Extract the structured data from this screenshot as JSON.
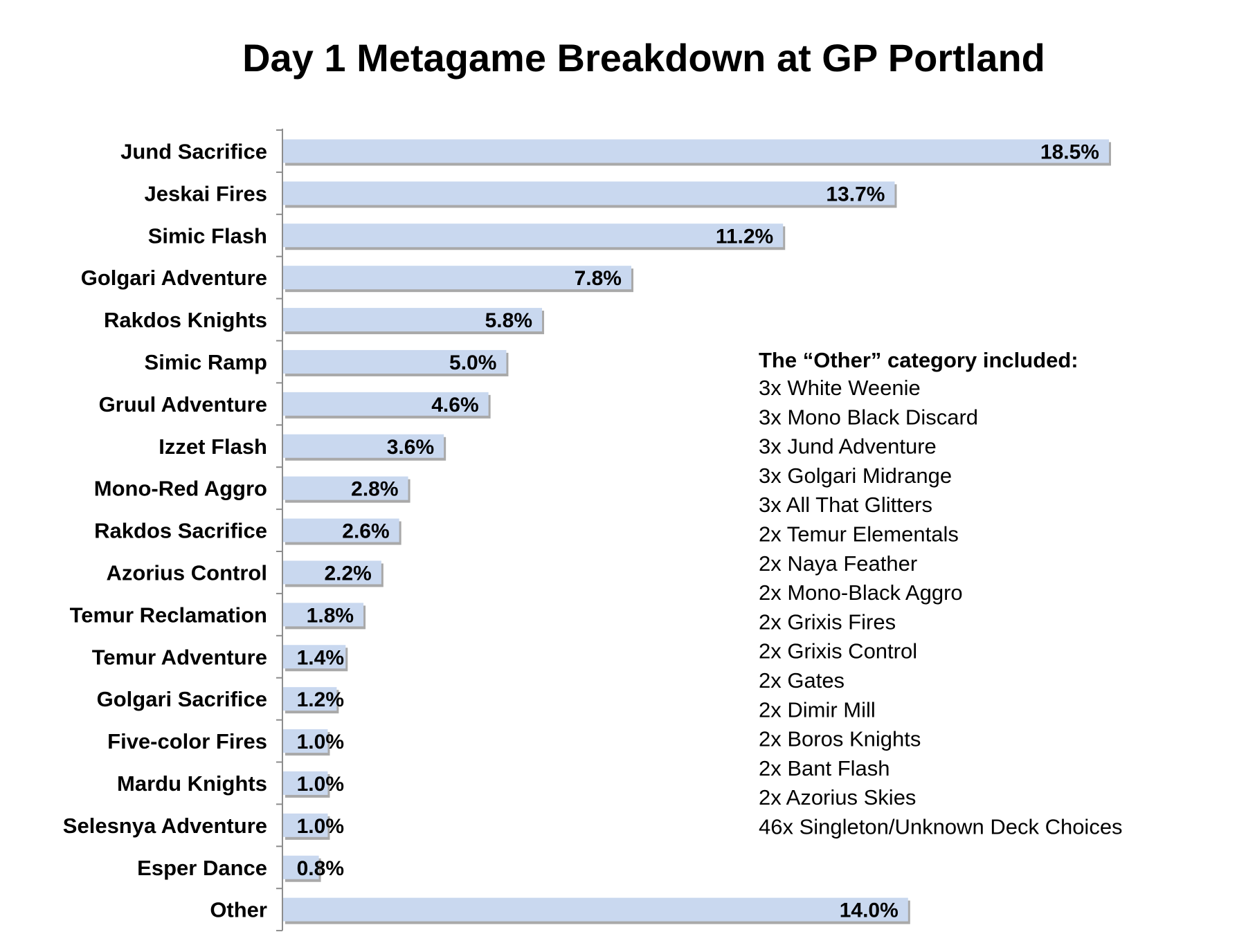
{
  "chart_data": {
    "type": "bar",
    "orientation": "horizontal",
    "title": "Day 1 Metagame Breakdown at GP Portland",
    "categories": [
      "Jund Sacrifice",
      "Jeskai Fires",
      "Simic Flash",
      "Golgari Adventure",
      "Rakdos Knights",
      "Simic Ramp",
      "Gruul Adventure",
      "Izzet Flash",
      "Mono-Red Aggro",
      "Rakdos Sacrifice",
      "Azorius Control",
      "Temur Reclamation",
      "Temur Adventure",
      "Golgari Sacrifice",
      "Five-color Fires",
      "Mardu Knights",
      "Selesnya Adventure",
      "Esper Dance",
      "Other"
    ],
    "values": [
      18.5,
      13.7,
      11.2,
      7.8,
      5.8,
      5.0,
      4.6,
      3.6,
      2.8,
      2.6,
      2.2,
      1.8,
      1.4,
      1.2,
      1.0,
      1.0,
      1.0,
      0.8,
      14.0
    ],
    "value_labels": [
      "18.5%",
      "13.7%",
      "11.2%",
      "7.8%",
      "5.8%",
      "5.0%",
      "4.6%",
      "3.6%",
      "2.8%",
      "2.6%",
      "2.2%",
      "1.8%",
      "1.4%",
      "1.2%",
      "1.0%",
      "1.0%",
      "1.0%",
      "0.8%",
      "14.0%"
    ],
    "xlabel": "",
    "ylabel": "",
    "xlim": [
      0,
      18.5
    ],
    "grid": false,
    "legend": "none",
    "bar_color": "#c9d8ef",
    "bar_shadow_color": "#a9a9a9",
    "axis_color": "#8c8c8c"
  },
  "annotation": {
    "heading": "The “Other” category included:",
    "lines": [
      "3x White Weenie",
      "3x Mono Black Discard",
      "3x Jund Adventure",
      "3x Golgari Midrange",
      "3x All That Glitters",
      "2x Temur Elementals",
      "2x Naya Feather",
      "2x Mono-Black Aggro",
      "2x Grixis Fires",
      "2x Grixis Control",
      "2x Gates",
      "2x Dimir Mill",
      "2x Boros Knights",
      "2x Bant Flash",
      "2x Azorius Skies",
      "46x Singleton/Unknown Deck Choices"
    ]
  }
}
